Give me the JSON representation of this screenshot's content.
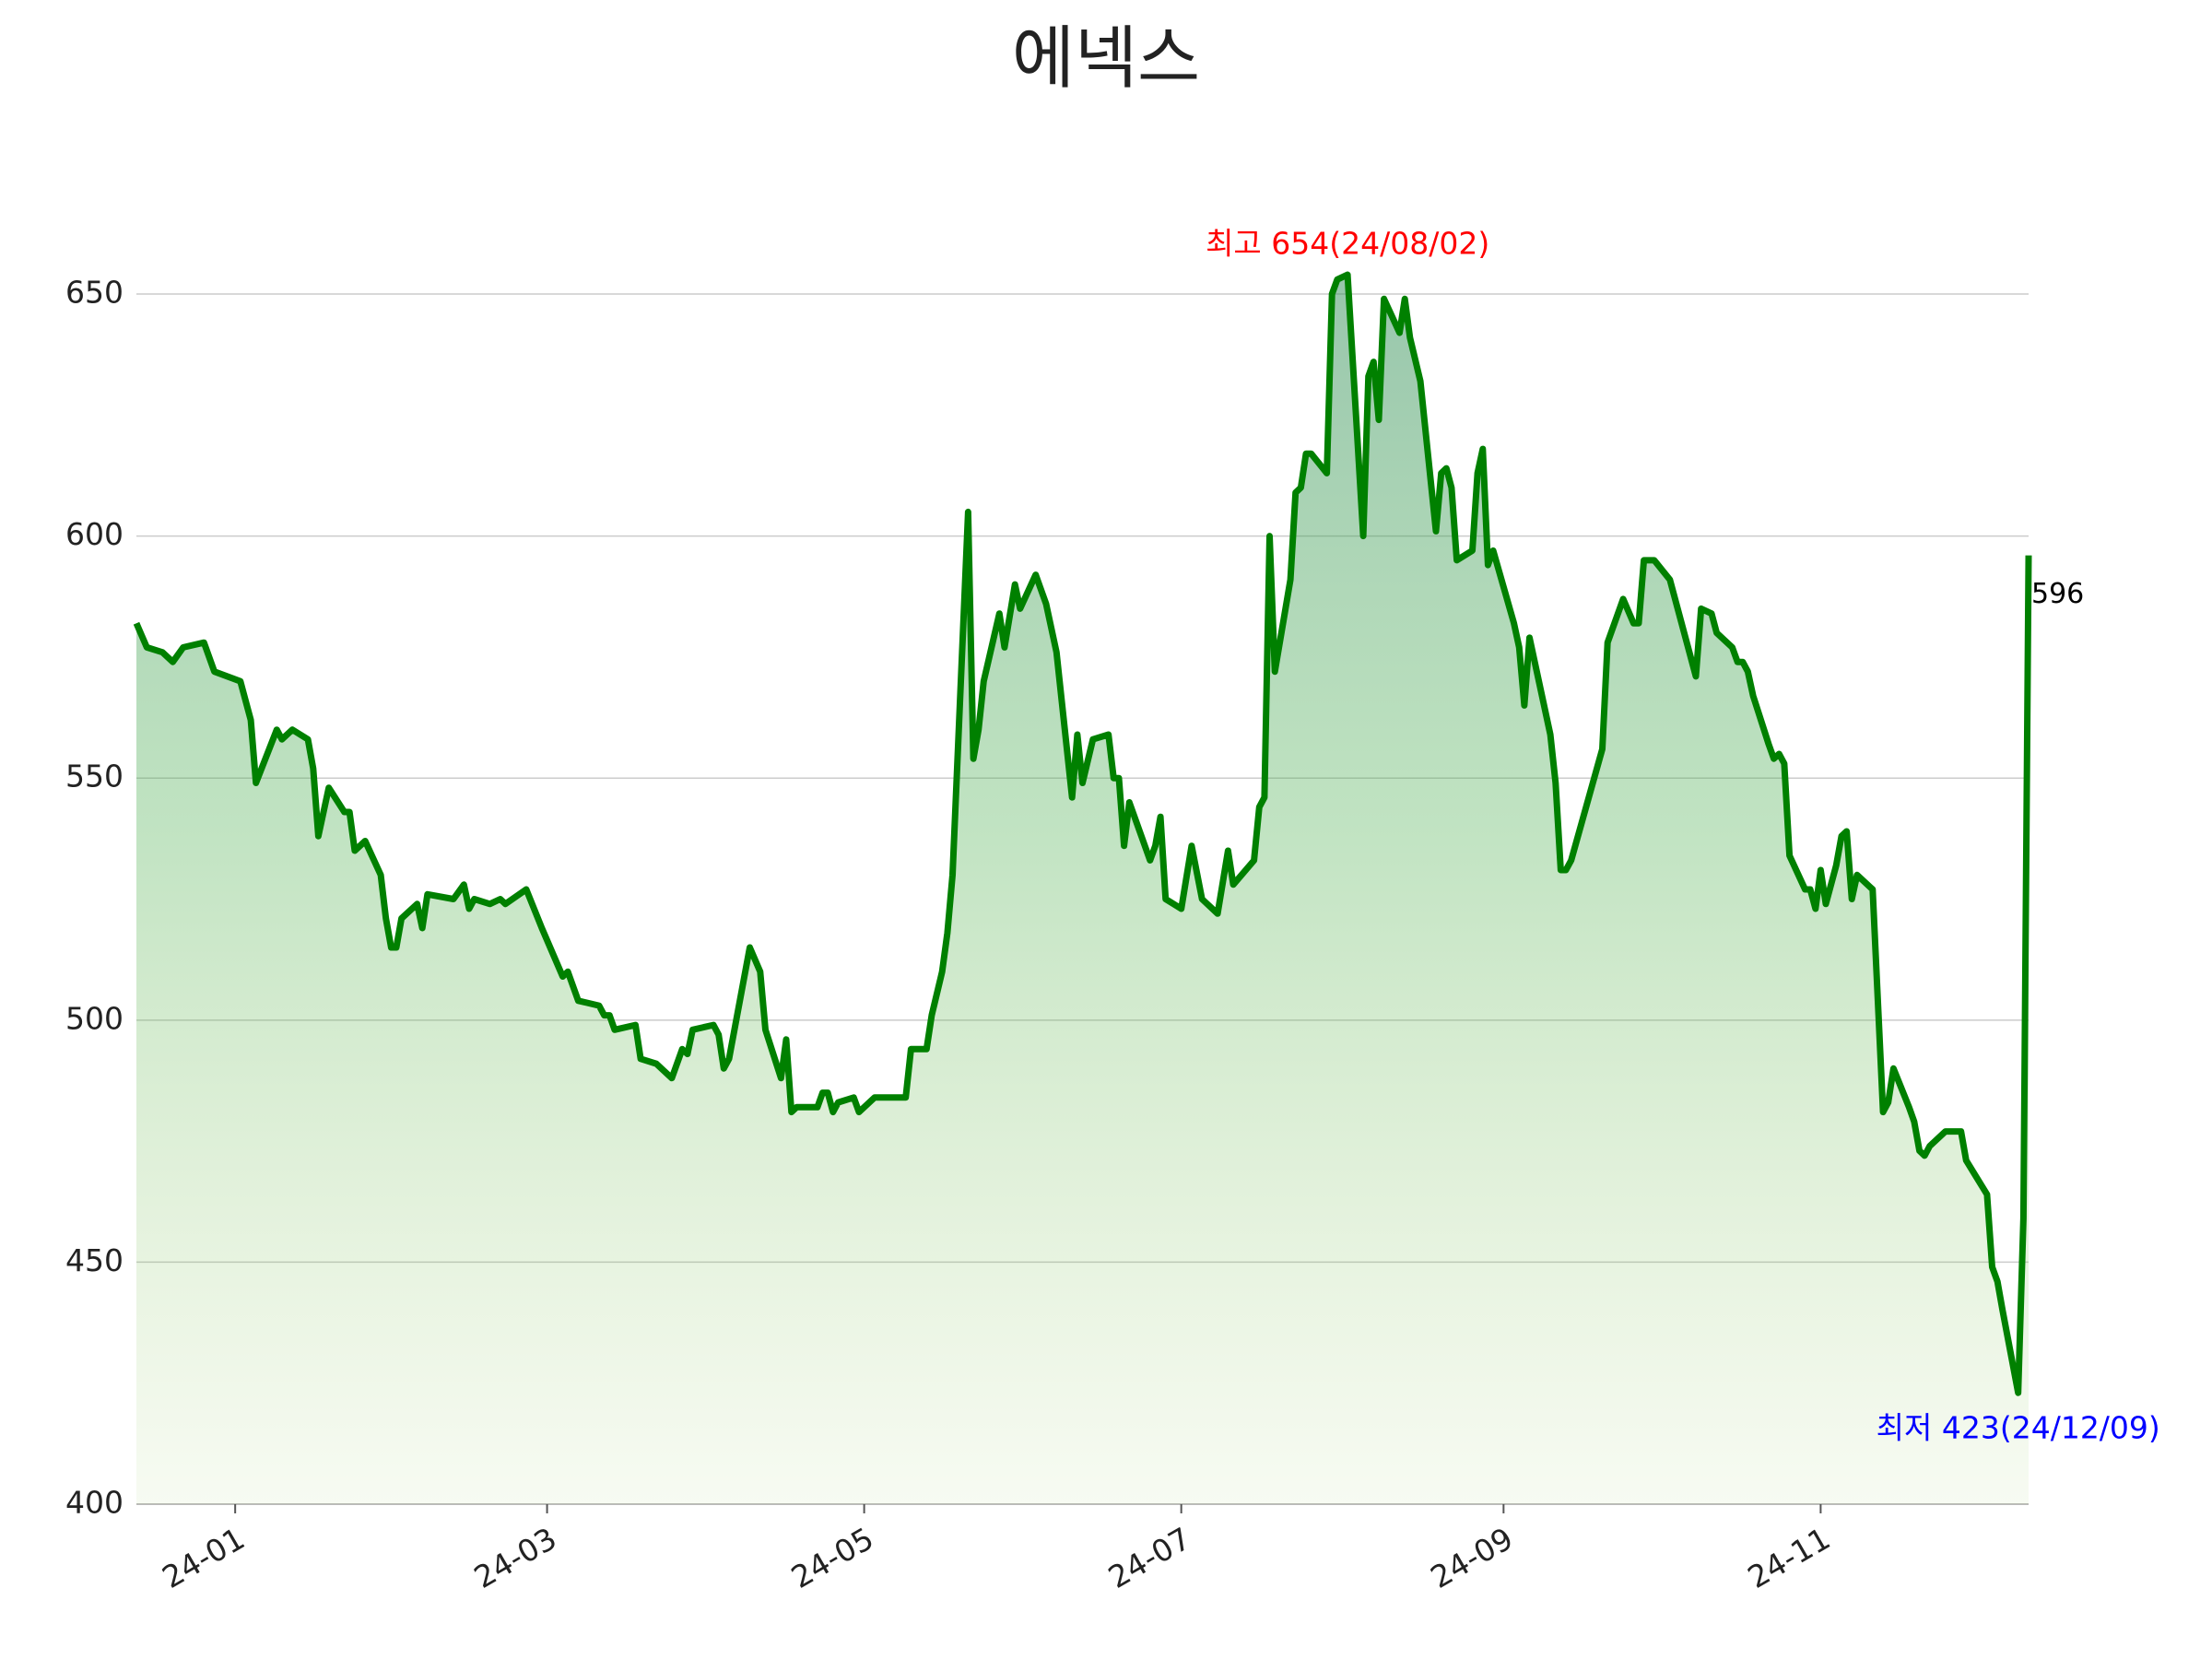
{
  "chart_data": {
    "type": "line",
    "title": "에넥스",
    "color": "green",
    "grid": true,
    "xlim": [
      "2023-12-13",
      "2024-12-11"
    ],
    "ylim": [
      400,
      670
    ],
    "yticks": [
      400,
      450,
      500,
      550,
      600,
      650
    ],
    "xticks": [
      {
        "value": "2024-01-01",
        "label": "24-01"
      },
      {
        "value": "2024-03-01",
        "label": "24-03"
      },
      {
        "value": "2024-05-01",
        "label": "24-05"
      },
      {
        "value": "2024-07-01",
        "label": "24-07"
      },
      {
        "value": "2024-09-01",
        "label": "24-09"
      },
      {
        "value": "2024-11-01",
        "label": "24-11"
      }
    ],
    "annotations": {
      "max": {
        "text": "최고 654(24/08/02)",
        "color": "red"
      },
      "min": {
        "text": "최저 423(24/12/09)",
        "color": "blue"
      },
      "last": {
        "text": "596",
        "color": "black"
      }
    },
    "x": [
      "2023-12-13",
      "2023-12-15",
      "2023-12-18",
      "2023-12-20",
      "2023-12-22",
      "2023-12-26",
      "2023-12-28",
      "2024-01-02",
      "2024-01-04",
      "2024-01-05",
      "2024-01-09",
      "2024-01-10",
      "2024-01-12",
      "2024-01-15",
      "2024-01-16",
      "2024-01-17",
      "2024-01-19",
      "2024-01-22",
      "2024-01-23",
      "2024-01-24",
      "2024-01-26",
      "2024-01-29",
      "2024-01-30",
      "2024-01-31",
      "2024-02-01",
      "2024-02-02",
      "2024-02-05",
      "2024-02-06",
      "2024-02-07",
      "2024-02-12",
      "2024-02-14",
      "2024-02-15",
      "2024-02-16",
      "2024-02-19",
      "2024-02-21",
      "2024-02-22",
      "2024-02-26",
      "2024-02-29",
      "2024-03-04",
      "2024-03-05",
      "2024-03-07",
      "2024-03-11",
      "2024-03-12",
      "2024-03-13",
      "2024-03-14",
      "2024-03-18",
      "2024-03-19",
      "2024-03-22",
      "2024-03-25",
      "2024-03-27",
      "2024-03-28",
      "2024-03-29",
      "2024-04-02",
      "2024-04-03",
      "2024-04-04",
      "2024-04-05",
      "2024-04-09",
      "2024-04-11",
      "2024-04-12",
      "2024-04-15",
      "2024-04-16",
      "2024-04-17",
      "2024-04-18",
      "2024-04-22",
      "2024-04-23",
      "2024-04-24",
      "2024-04-25",
      "2024-04-26",
      "2024-04-29",
      "2024-04-30",
      "2024-05-03",
      "2024-05-09",
      "2024-05-10",
      "2024-05-13",
      "2024-05-14",
      "2024-05-16",
      "2024-05-17",
      "2024-05-18",
      "2024-05-21",
      "2024-05-22",
      "2024-05-23",
      "2024-05-24",
      "2024-05-27",
      "2024-05-28",
      "2024-05-30",
      "2024-05-31",
      "2024-06-03",
      "2024-06-05",
      "2024-06-07",
      "2024-06-10",
      "2024-06-11",
      "2024-06-12",
      "2024-06-14",
      "2024-06-17",
      "2024-06-18",
      "2024-06-19",
      "2024-06-20",
      "2024-06-21",
      "2024-06-25",
      "2024-06-26",
      "2024-06-27",
      "2024-06-28",
      "2024-07-01",
      "2024-07-03",
      "2024-07-05",
      "2024-07-08",
      "2024-07-10",
      "2024-07-11",
      "2024-07-15",
      "2024-07-16",
      "2024-07-17",
      "2024-07-18",
      "2024-07-19",
      "2024-07-22",
      "2024-07-23",
      "2024-07-24",
      "2024-07-25",
      "2024-07-26",
      "2024-07-29",
      "2024-07-30",
      "2024-07-31",
      "2024-08-02",
      "2024-08-05",
      "2024-08-06",
      "2024-08-07",
      "2024-08-08",
      "2024-08-09",
      "2024-08-12",
      "2024-08-13",
      "2024-08-14",
      "2024-08-16",
      "2024-08-19",
      "2024-08-20",
      "2024-08-21",
      "2024-08-22",
      "2024-08-23",
      "2024-08-26",
      "2024-08-27",
      "2024-08-28",
      "2024-08-29",
      "2024-08-30",
      "2024-09-03",
      "2024-09-04",
      "2024-09-05",
      "2024-09-06",
      "2024-09-10",
      "2024-09-11",
      "2024-09-12",
      "2024-09-13",
      "2024-09-14",
      "2024-09-20",
      "2024-09-21",
      "2024-09-24",
      "2024-09-26",
      "2024-09-27",
      "2024-09-28",
      "2024-09-30",
      "2024-10-03",
      "2024-10-08",
      "2024-10-09",
      "2024-10-11",
      "2024-10-12",
      "2024-10-15",
      "2024-10-16",
      "2024-10-17",
      "2024-10-18",
      "2024-10-19",
      "2024-10-22",
      "2024-10-23",
      "2024-10-24",
      "2024-10-25",
      "2024-10-26",
      "2024-10-29",
      "2024-10-30",
      "2024-10-31",
      "2024-11-01",
      "2024-11-02",
      "2024-11-04",
      "2024-11-05",
      "2024-11-06",
      "2024-11-07",
      "2024-11-08",
      "2024-11-11",
      "2024-11-13",
      "2024-11-14",
      "2024-11-15",
      "2024-11-18",
      "2024-11-19",
      "2024-11-20",
      "2024-11-21",
      "2024-11-22",
      "2024-11-25",
      "2024-11-28",
      "2024-11-29",
      "2024-12-03",
      "2024-12-04",
      "2024-12-05",
      "2024-12-06",
      "2024-12-09",
      "2024-12-10",
      "2024-12-11"
    ],
    "values": [
      582,
      577,
      576,
      574,
      577,
      578,
      572,
      570,
      562,
      549,
      560,
      558,
      560,
      558,
      552,
      538,
      548,
      543,
      543,
      535,
      537,
      530,
      521,
      515,
      515,
      521,
      524,
      519,
      526,
      525,
      528,
      523,
      525,
      524,
      525,
      524,
      527,
      519,
      509,
      510,
      504,
      503,
      501,
      501,
      498,
      499,
      492,
      491,
      488,
      494,
      493,
      498,
      499,
      497,
      490,
      492,
      515,
      510,
      498,
      488,
      496,
      481,
      482,
      482,
      485,
      485,
      481,
      483,
      484,
      481,
      484,
      484,
      494,
      494,
      501,
      510,
      518,
      530,
      605,
      554,
      560,
      570,
      584,
      577,
      590,
      585,
      592,
      586,
      576,
      546,
      559,
      549,
      558,
      559,
      550,
      550,
      536,
      545,
      533,
      536,
      542,
      525,
      523,
      536,
      525,
      522,
      535,
      528,
      533,
      544,
      546,
      600,
      572,
      591,
      609,
      610,
      617,
      617,
      613,
      650,
      653,
      654,
      600,
      633,
      636,
      624,
      649,
      642,
      649,
      641,
      632,
      601,
      613,
      614,
      610,
      595,
      597,
      613,
      618,
      594,
      597,
      582,
      577,
      565,
      579,
      559,
      549,
      531,
      531,
      533,
      556,
      578,
      587,
      582,
      582,
      595,
      595,
      591,
      571,
      585,
      584,
      580,
      577,
      574,
      574,
      572,
      567,
      557,
      554,
      555,
      553,
      534,
      527,
      527,
      523,
      531,
      524,
      532,
      538,
      539,
      525,
      530,
      527,
      481,
      483,
      490,
      482,
      479,
      473,
      472,
      474,
      477,
      477,
      471,
      464,
      449,
      446,
      440,
      423,
      459,
      596
    ]
  }
}
